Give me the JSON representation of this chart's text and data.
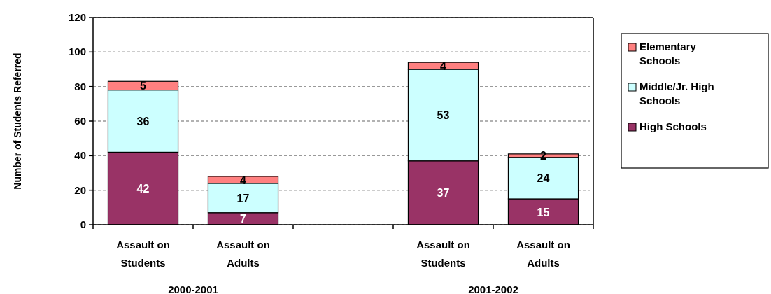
{
  "chart_data": {
    "type": "bar",
    "stacked": true,
    "ylabel": "Number of Students Referred",
    "categories": [
      "Assault on Students",
      "Assault on Adults",
      null,
      "Assault on Students",
      "Assault on Adults"
    ],
    "series": [
      {
        "name": "High Schools",
        "color": "#993366",
        "values": [
          42,
          7,
          null,
          37,
          15
        ]
      },
      {
        "name": "Middle/Jr. High Schools",
        "color": "#ccffff",
        "values": [
          36,
          17,
          null,
          53,
          24
        ]
      },
      {
        "name": "Elementary Schools",
        "color": "#ff8080",
        "values": [
          5,
          4,
          null,
          4,
          2
        ]
      }
    ],
    "ylim": [
      0,
      120
    ],
    "yticks": [
      0,
      20,
      40,
      60,
      80,
      100,
      120
    ],
    "grid": "y",
    "legend": "right",
    "data_labels": true,
    "annotations": [
      "2000-2001",
      "2001-2002"
    ]
  }
}
